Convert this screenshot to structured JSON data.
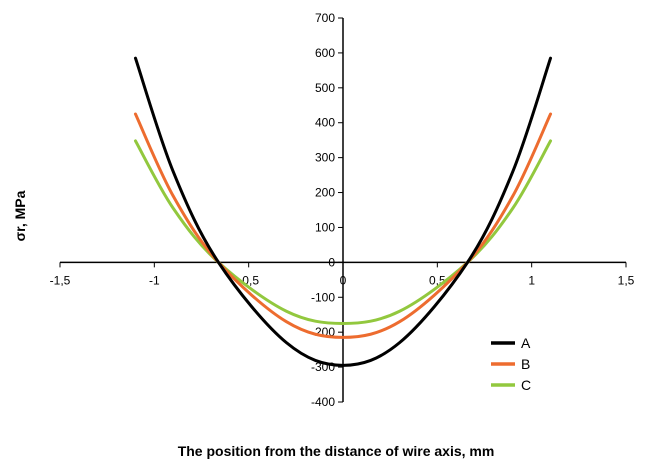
{
  "chart_data": {
    "type": "line",
    "title": "",
    "xlabel": "The position from the distance of wire axis, mm",
    "ylabel": "σr, MPa",
    "xlim": [
      -1.5,
      1.5
    ],
    "ylim": [
      -400,
      700
    ],
    "x_ticks": [
      -1.5,
      -1,
      -0.5,
      0,
      0.5,
      1,
      1.5
    ],
    "x_tick_labels": [
      "-1,5",
      "-1",
      "-0,5",
      "0",
      "0,5",
      "1",
      "1,5"
    ],
    "y_ticks": [
      -400,
      -300,
      -200,
      -100,
      0,
      100,
      200,
      300,
      400,
      500,
      600,
      700
    ],
    "y_tick_labels": [
      "-400",
      "-300",
      "-200",
      "-100",
      "0",
      "100",
      "200",
      "300",
      "400",
      "500",
      "600",
      "700"
    ],
    "grid": false,
    "legend": "bottom-right",
    "x": [
      -1.1,
      -0.9,
      -0.66,
      -0.3,
      0,
      0.3,
      0.66,
      0.9,
      1.1
    ],
    "series": [
      {
        "name": "A",
        "color": "#000000",
        "values": [
          585,
          260,
          0,
          -230,
          -295,
          -230,
          0,
          260,
          585
        ]
      },
      {
        "name": "B",
        "color": "#ed6c2f",
        "values": [
          425,
          190,
          0,
          -170,
          -215,
          -170,
          0,
          190,
          425
        ]
      },
      {
        "name": "C",
        "color": "#92c83e",
        "values": [
          348,
          155,
          0,
          -140,
          -175,
          -140,
          0,
          155,
          348
        ]
      }
    ]
  }
}
